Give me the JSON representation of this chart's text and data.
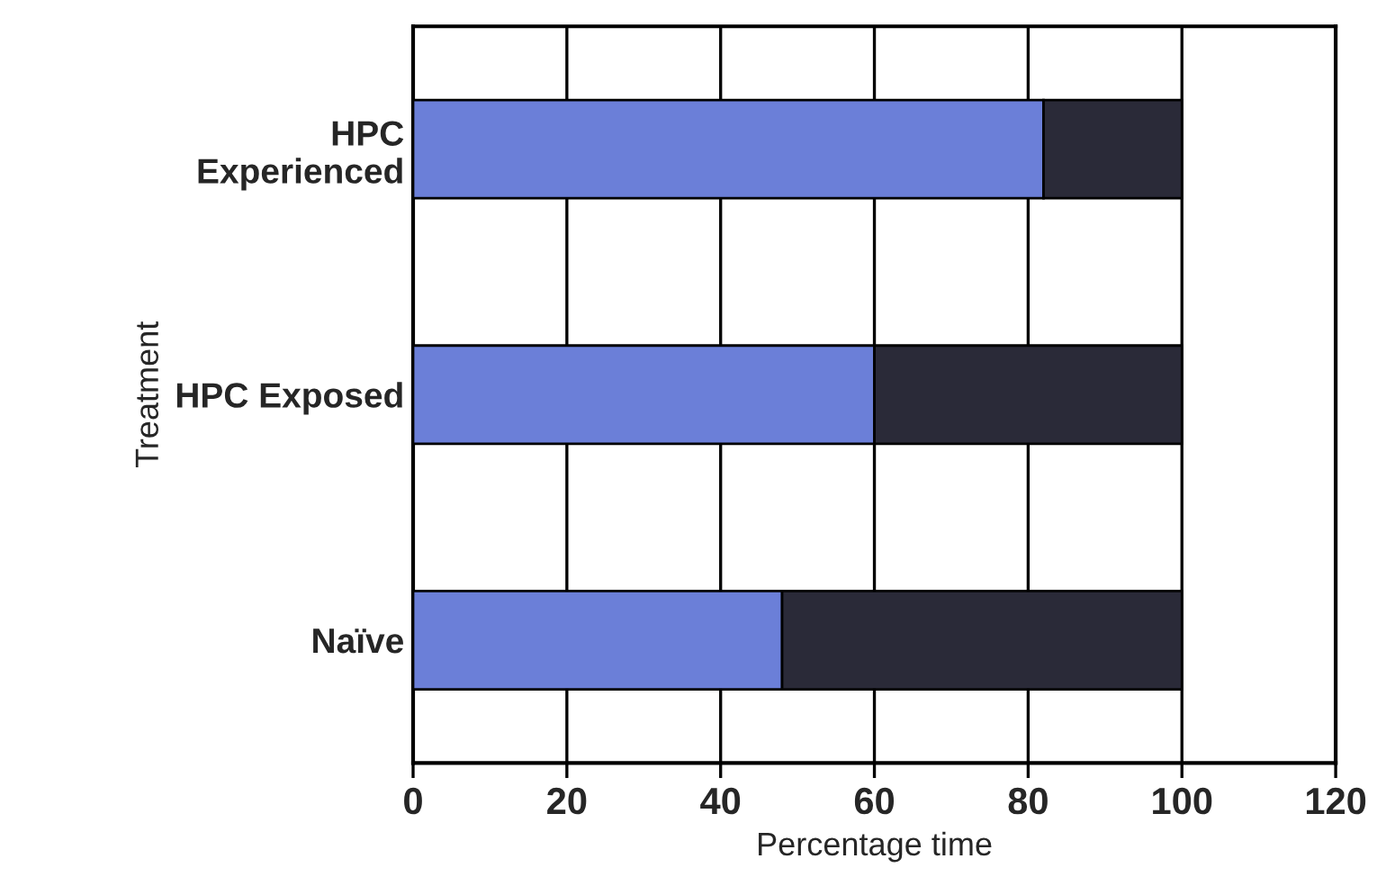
{
  "chart_data": {
    "type": "bar",
    "orientation": "horizontal",
    "stacked": true,
    "categories": [
      "HPC\nExperienced",
      "HPC Exposed",
      "Naïve"
    ],
    "series": [
      {
        "color": "#6b7fd8",
        "values": [
          82,
          60,
          48
        ]
      },
      {
        "color": "#2a2a38",
        "values": [
          18,
          40,
          52
        ]
      }
    ],
    "xlabel": "Percentage time",
    "ylabel": "Treatment",
    "xlim": [
      0,
      120
    ],
    "xticks": [
      0,
      20,
      40,
      60,
      80,
      100,
      120
    ],
    "grid": "x"
  }
}
